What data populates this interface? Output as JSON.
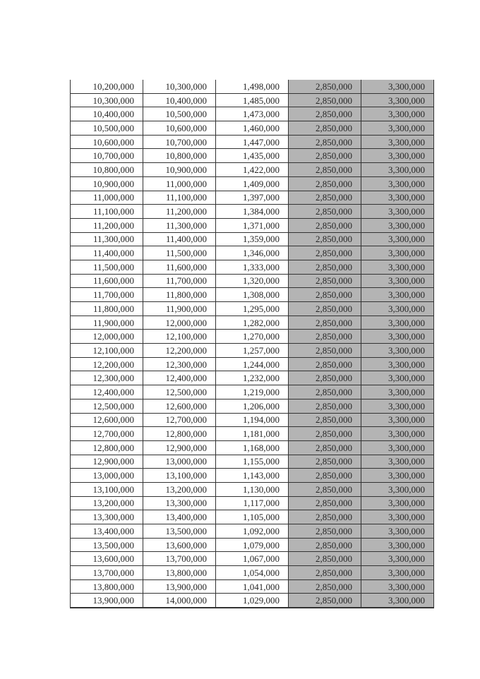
{
  "page": {
    "background_color": "#ffffff"
  },
  "table": {
    "description": "numeric-range-table-continuation",
    "border_color": "#333333",
    "text_color": "#262626",
    "shading_color": "#b4b4b4",
    "shaded_column_indexes": [
      3,
      4
    ],
    "column_count": 5,
    "rows": [
      [
        "10,200,000",
        "10,300,000",
        "1,498,000",
        "2,850,000",
        "3,300,000"
      ],
      [
        "10,300,000",
        "10,400,000",
        "1,485,000",
        "2,850,000",
        "3,300,000"
      ],
      [
        "10,400,000",
        "10,500,000",
        "1,473,000",
        "2,850,000",
        "3,300,000"
      ],
      [
        "10,500,000",
        "10,600,000",
        "1,460,000",
        "2,850,000",
        "3,300,000"
      ],
      [
        "10,600,000",
        "10,700,000",
        "1,447,000",
        "2,850,000",
        "3,300,000"
      ],
      [
        "10,700,000",
        "10,800,000",
        "1,435,000",
        "2,850,000",
        "3,300,000"
      ],
      [
        "10,800,000",
        "10,900,000",
        "1,422,000",
        "2,850,000",
        "3,300,000"
      ],
      [
        "10,900,000",
        "11,000,000",
        "1,409,000",
        "2,850,000",
        "3,300,000"
      ],
      [
        "11,000,000",
        "11,100,000",
        "1,397,000",
        "2,850,000",
        "3,300,000"
      ],
      [
        "11,100,000",
        "11,200,000",
        "1,384,000",
        "2,850,000",
        "3,300,000"
      ],
      [
        "11,200,000",
        "11,300,000",
        "1,371,000",
        "2,850,000",
        "3,300,000"
      ],
      [
        "11,300,000",
        "11,400,000",
        "1,359,000",
        "2,850,000",
        "3,300,000"
      ],
      [
        "11,400,000",
        "11,500,000",
        "1,346,000",
        "2,850,000",
        "3,300,000"
      ],
      [
        "11,500,000",
        "11,600,000",
        "1,333,000",
        "2,850,000",
        "3,300,000"
      ],
      [
        "11,600,000",
        "11,700,000",
        "1,320,000",
        "2,850,000",
        "3,300,000"
      ],
      [
        "11,700,000",
        "11,800,000",
        "1,308,000",
        "2,850,000",
        "3,300,000"
      ],
      [
        "11,800,000",
        "11,900,000",
        "1,295,000",
        "2,850,000",
        "3,300,000"
      ],
      [
        "11,900,000",
        "12,000,000",
        "1,282,000",
        "2,850,000",
        "3,300,000"
      ],
      [
        "12,000,000",
        "12,100,000",
        "1,270,000",
        "2,850,000",
        "3,300,000"
      ],
      [
        "12,100,000",
        "12,200,000",
        "1,257,000",
        "2,850,000",
        "3,300,000"
      ],
      [
        "12,200,000",
        "12,300,000",
        "1,244,000",
        "2,850,000",
        "3,300,000"
      ],
      [
        "12,300,000",
        "12,400,000",
        "1,232,000",
        "2,850,000",
        "3,300,000"
      ],
      [
        "12,400,000",
        "12,500,000",
        "1,219,000",
        "2,850,000",
        "3,300,000"
      ],
      [
        "12,500,000",
        "12,600,000",
        "1,206,000",
        "2,850,000",
        "3,300,000"
      ],
      [
        "12,600,000",
        "12,700,000",
        "1,194,000",
        "2,850,000",
        "3,300,000"
      ],
      [
        "12,700,000",
        "12,800,000",
        "1,181,000",
        "2,850,000",
        "3,300,000"
      ],
      [
        "12,800,000",
        "12,900,000",
        "1,168,000",
        "2,850,000",
        "3,300,000"
      ],
      [
        "12,900,000",
        "13,000,000",
        "1,155,000",
        "2,850,000",
        "3,300,000"
      ],
      [
        "13,000,000",
        "13,100,000",
        "1,143,000",
        "2,850,000",
        "3,300,000"
      ],
      [
        "13,100,000",
        "13,200,000",
        "1,130,000",
        "2,850,000",
        "3,300,000"
      ],
      [
        "13,200,000",
        "13,300,000",
        "1,117,000",
        "2,850,000",
        "3,300,000"
      ],
      [
        "13,300,000",
        "13,400,000",
        "1,105,000",
        "2,850,000",
        "3,300,000"
      ],
      [
        "13,400,000",
        "13,500,000",
        "1,092,000",
        "2,850,000",
        "3,300,000"
      ],
      [
        "13,500,000",
        "13,600,000",
        "1,079,000",
        "2,850,000",
        "3,300,000"
      ],
      [
        "13,600,000",
        "13,700,000",
        "1,067,000",
        "2,850,000",
        "3,300,000"
      ],
      [
        "13,700,000",
        "13,800,000",
        "1,054,000",
        "2,850,000",
        "3,300,000"
      ],
      [
        "13,800,000",
        "13,900,000",
        "1,041,000",
        "2,850,000",
        "3,300,000"
      ],
      [
        "13,900,000",
        "14,000,000",
        "1,029,000",
        "2,850,000",
        "3,300,000"
      ]
    ]
  }
}
